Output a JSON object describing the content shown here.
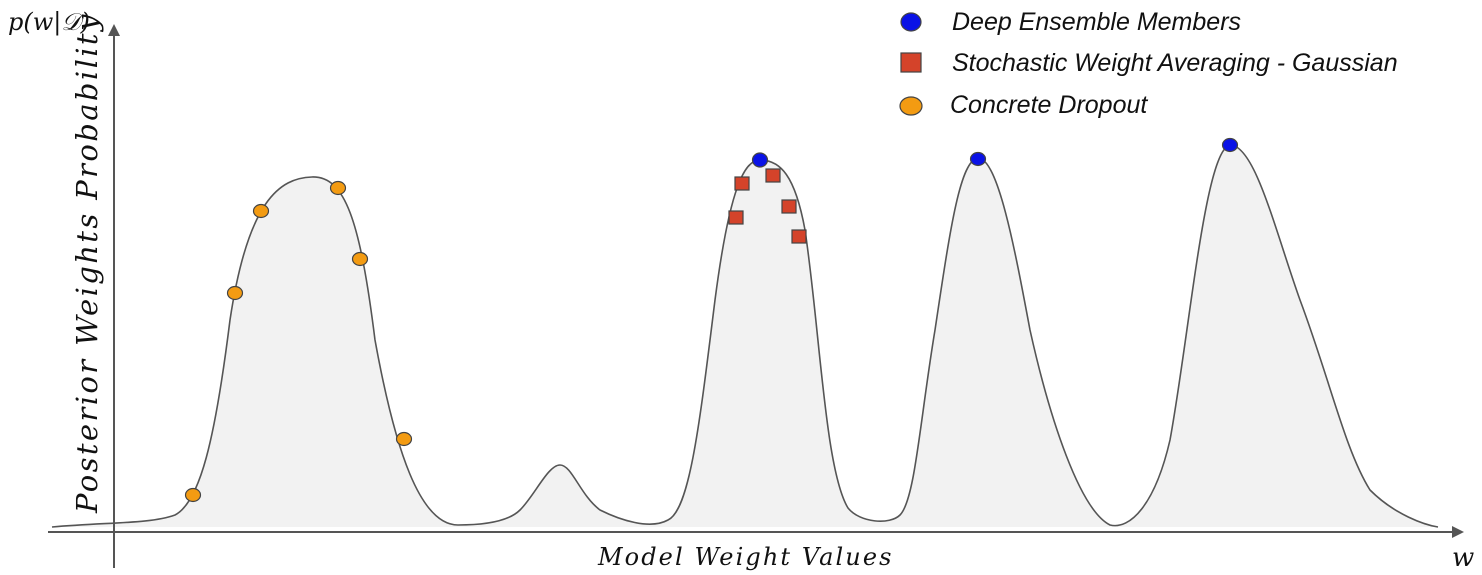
{
  "axes": {
    "y_label": "Posterior Weights Probability",
    "y_symbol": "p(w|𝒟)",
    "x_label": "Model Weight Values",
    "x_symbol": "w"
  },
  "legend": [
    {
      "label": "Deep Ensemble Members",
      "marker": "circle",
      "color": "#0a12e6"
    },
    {
      "label": "Stochastic Weight Averaging - Gaussian",
      "marker": "square",
      "color": "#d4432a"
    },
    {
      "label": "Concrete Dropout",
      "marker": "ellipse",
      "color": "#f39b12"
    }
  ],
  "colors": {
    "curve_stroke": "#555555",
    "curve_fill": "#f2f2f2",
    "axis": "#555555",
    "marker_stroke": "#444444"
  }
}
